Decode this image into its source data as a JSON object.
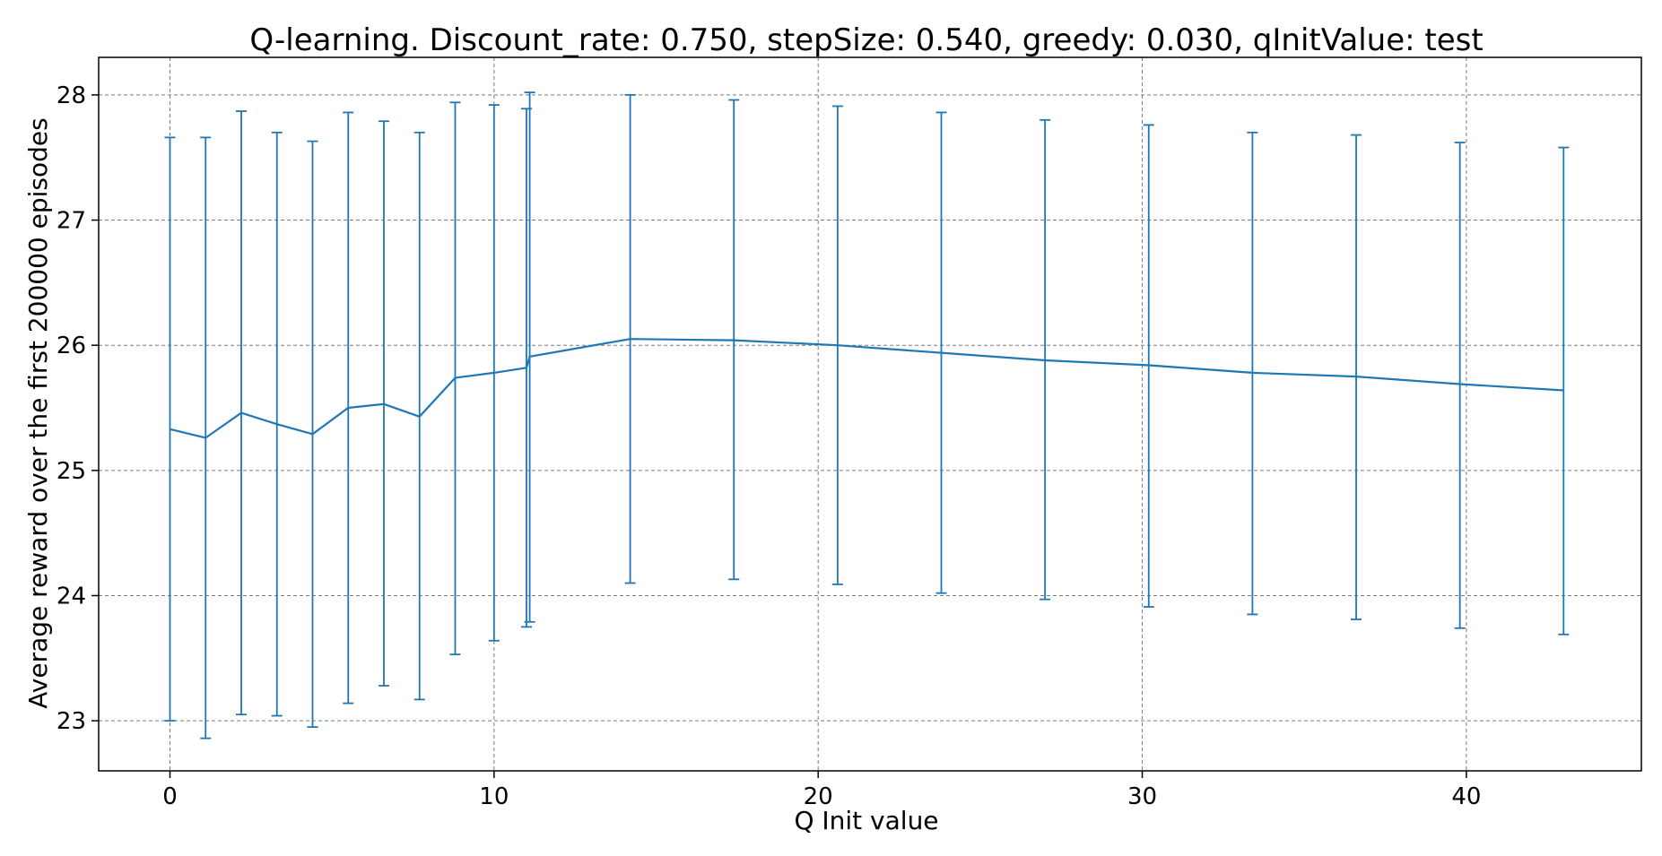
{
  "chart_data": {
    "type": "line",
    "title": "Q-learning. Discount_rate: 0.750, stepSize: 0.540, greedy: 0.030, qInitValue: test",
    "xlabel": "Q Init value",
    "ylabel": "Average reward over the first 200000 episodes",
    "xlim": [
      -2.2,
      45.4
    ],
    "ylim": [
      22.6,
      28.3
    ],
    "xticks": [
      0,
      10,
      20,
      30,
      40
    ],
    "yticks": [
      23,
      24,
      25,
      26,
      27,
      28
    ],
    "grid": true,
    "color": "#1f77b4",
    "series": [
      {
        "x": [
          0,
          1.1,
          2.2,
          3.3,
          4.4,
          5.5,
          6.6,
          7.7,
          8.8,
          10.0,
          11.0,
          11.1,
          14.2,
          17.4,
          20.6,
          23.8,
          27.0,
          30.2,
          33.4,
          36.6,
          39.8,
          43.0
        ],
        "y": [
          25.33,
          25.26,
          25.46,
          25.37,
          25.29,
          25.5,
          25.53,
          25.43,
          25.74,
          25.78,
          25.82,
          25.91,
          26.05,
          26.04,
          26.0,
          25.94,
          25.88,
          25.84,
          25.78,
          25.75,
          25.69,
          25.64
        ],
        "yerr_low": [
          23.0,
          22.86,
          23.05,
          23.04,
          22.95,
          23.14,
          23.28,
          23.17,
          23.53,
          23.64,
          23.75,
          23.79,
          24.1,
          24.13,
          24.09,
          24.02,
          23.97,
          23.91,
          23.85,
          23.81,
          23.74,
          23.69
        ],
        "yerr_high": [
          27.66,
          27.66,
          27.87,
          27.7,
          27.63,
          27.86,
          27.79,
          27.7,
          27.94,
          27.92,
          27.89,
          28.02,
          28.0,
          27.96,
          27.91,
          27.86,
          27.8,
          27.76,
          27.7,
          27.68,
          27.62,
          27.58
        ]
      }
    ]
  }
}
